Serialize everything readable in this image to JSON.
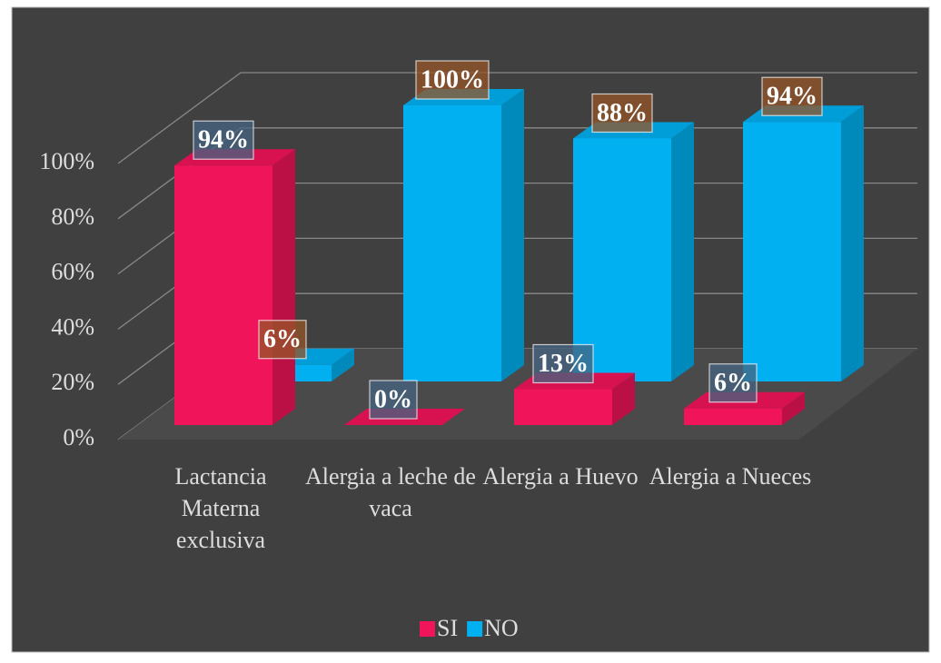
{
  "chart_data": {
    "type": "bar3d",
    "categories": [
      "Lactancia Materna exclusiva",
      "Alergia a leche de vaca",
      "Alergia a Huevo",
      "Alergia a Nueces"
    ],
    "series": [
      {
        "name": "SI",
        "color": "#f0145a",
        "values": [
          94,
          0,
          13,
          6
        ],
        "value_labels": [
          "94%",
          "0%",
          "13%",
          "6%"
        ]
      },
      {
        "name": "NO",
        "color": "#00b0f0",
        "values": [
          6,
          100,
          88,
          94
        ],
        "value_labels": [
          "6%",
          "100%",
          "88%",
          "94%"
        ]
      }
    ],
    "ylim": [
      0,
      100
    ],
    "yticks": [
      {
        "value": 0,
        "label": "0%"
      },
      {
        "value": 20,
        "label": "20%"
      },
      {
        "value": 40,
        "label": "40%"
      },
      {
        "value": 60,
        "label": "60%"
      },
      {
        "value": 80,
        "label": "80%"
      },
      {
        "value": 100,
        "label": "100%"
      }
    ],
    "grid": true,
    "legend": "bottom"
  }
}
